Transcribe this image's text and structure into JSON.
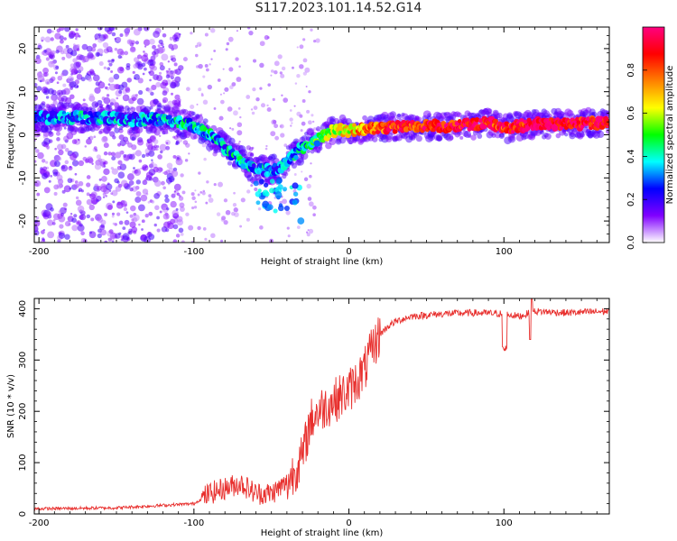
{
  "title": "S117.2023.101.14.52.G14",
  "chart_data": [
    {
      "type": "heatmap",
      "name": "spectrogram",
      "xlabel": "Height of straight line (km)",
      "ylabel": "Frequency (Hz)",
      "xlim": [
        -203,
        168
      ],
      "ylim": [
        -25,
        25
      ],
      "x_ticks": [
        -200,
        -100,
        0,
        100
      ],
      "y_ticks": [
        -20,
        -10,
        0,
        10,
        20
      ],
      "ridge": {
        "x": [
          -200,
          -180,
          -160,
          -140,
          -120,
          -110,
          -100,
          -90,
          -80,
          -70,
          -60,
          -50,
          -45,
          -40,
          -30,
          -20,
          -10,
          0,
          10,
          30,
          60,
          80,
          90,
          100,
          120,
          140,
          160,
          168
        ],
        "freq": [
          4,
          4,
          4,
          3.5,
          3.5,
          3,
          2,
          0,
          -3,
          -6,
          -8,
          -8,
          -8,
          -6,
          -3,
          -1,
          1,
          1,
          1.5,
          1.8,
          2,
          2.3,
          3,
          1.5,
          2.5,
          2.5,
          2.8,
          3
        ],
        "strength": [
          0.25,
          0.3,
          0.3,
          0.3,
          0.32,
          0.35,
          0.35,
          0.35,
          0.35,
          0.35,
          0.3,
          0.3,
          0.25,
          0.3,
          0.35,
          0.45,
          0.55,
          0.65,
          0.75,
          0.85,
          0.9,
          0.9,
          0.9,
          0.85,
          0.95,
          0.95,
          0.9,
          0.9
        ]
      }
    },
    {
      "type": "line",
      "name": "snr",
      "xlabel": "Height of straight line (km)",
      "ylabel": "SNR (10 * v/v)",
      "xlim": [
        -203,
        168
      ],
      "ylim": [
        0,
        420
      ],
      "x_ticks": [
        -200,
        -100,
        0,
        100
      ],
      "y_ticks": [
        0,
        100,
        200,
        300,
        400
      ],
      "color": "#e8302e",
      "trend": {
        "x": [
          -203,
          -150,
          -100,
          -90,
          -70,
          -60,
          -50,
          -40,
          -30,
          -25,
          -20,
          -15,
          -10,
          -5,
          0,
          5,
          10,
          15,
          20,
          25,
          30,
          40,
          60,
          80,
          100,
          110,
          120,
          140,
          168
        ],
        "y": [
          10,
          12,
          20,
          40,
          60,
          40,
          40,
          60,
          110,
          180,
          200,
          210,
          220,
          230,
          240,
          260,
          280,
          320,
          350,
          365,
          375,
          385,
          390,
          392,
          390,
          385,
          395,
          392,
          395
        ]
      },
      "spikes": [
        {
          "x": 101,
          "y": 328
        },
        {
          "x": 117,
          "y": 340
        },
        {
          "x": 118,
          "y": 420
        }
      ]
    }
  ],
  "colorbar": {
    "label": "Normalized spectral amplitude",
    "range": [
      0,
      1
    ],
    "ticks": [
      0,
      0.2,
      0.4,
      0.6,
      0.8
    ],
    "tick_labels": [
      "0.0",
      "0.2",
      "0.4",
      "0.6",
      "0.8"
    ],
    "colors": [
      "#ffffff",
      "#8000ff",
      "#0000ff",
      "#00ffff",
      "#00ff00",
      "#ffff00",
      "#ff8000",
      "#ff0000",
      "#ff0080"
    ]
  }
}
